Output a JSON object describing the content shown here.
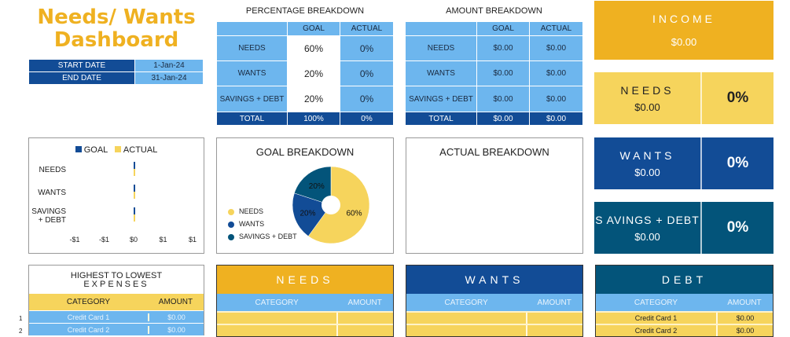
{
  "title": {
    "line1": "Needs/ Wants",
    "line2": "Dashboard"
  },
  "dates": {
    "start_label": "START DATE",
    "start": "1-Jan-24",
    "end_label": "END DATE",
    "end": "31-Jan-24"
  },
  "percentage": {
    "title": "PERCENTAGE BREAKDOWN",
    "headers": [
      "",
      "GOAL",
      "ACTUAL"
    ],
    "rows": [
      [
        "NEEDS",
        "60%",
        "0%"
      ],
      [
        "WANTS",
        "20%",
        "0%"
      ],
      [
        "SAVINGS + DEBT",
        "20%",
        "0%"
      ]
    ],
    "total": [
      "TOTAL",
      "100%",
      "0%"
    ]
  },
  "amount": {
    "title": "AMOUNT BREAKDOWN",
    "headers": [
      "",
      "GOAL",
      "ACTUAL"
    ],
    "rows": [
      [
        "NEEDS",
        "$0.00",
        "$0.00"
      ],
      [
        "WANTS",
        "$0.00",
        "$0.00"
      ],
      [
        "SAVINGS + DEBT",
        "$0.00",
        "$0.00"
      ]
    ],
    "total": [
      "TOTAL",
      "$0.00",
      "$0.00"
    ]
  },
  "cards": {
    "income": {
      "label": "INCOME",
      "value": "$0.00"
    },
    "needs": {
      "label": "NEEDS",
      "value": "$0.00",
      "pct": "0%"
    },
    "wants": {
      "label": "WANTS",
      "value": "$0.00",
      "pct": "0%"
    },
    "savings": {
      "label": "S AVINGS + DEBT",
      "value": "$0.00",
      "pct": "0%"
    }
  },
  "colors": {
    "gold": "#efb121",
    "yellow": "#f6d45c",
    "blue": "#124c96",
    "teal": "#03547a",
    "light": "#6db6ee"
  },
  "chart_data": [
    {
      "type": "bar",
      "orientation": "horizontal",
      "categories": [
        "NEEDS",
        "WANTS",
        "SAVINGS\n+ DEBT"
      ],
      "series": [
        {
          "name": "GOAL",
          "values": [
            0,
            0,
            0
          ],
          "color": "#124c96"
        },
        {
          "name": "ACTUAL",
          "values": [
            0,
            0,
            0
          ],
          "color": "#f6d45c"
        }
      ],
      "xticks": [
        "-$1",
        "-$1",
        "$0",
        "$1",
        "$1"
      ],
      "legend": "top"
    },
    {
      "type": "pie",
      "title": "GOAL BREAKDOWN",
      "categories": [
        "NEEDS",
        "WANTS",
        "SAVINGS + DEBT"
      ],
      "values": [
        60,
        20,
        20
      ],
      "labels": [
        "60%",
        "20%",
        "20%"
      ],
      "colors": [
        "#f6d45c",
        "#124c96",
        "#03547a"
      ],
      "legend": "left"
    },
    {
      "type": "pie",
      "title": "ACTUAL BREAKDOWN",
      "categories": [],
      "values": []
    }
  ],
  "lists": {
    "highest": {
      "title1": "HIGHEST TO LOWEST",
      "title2": "EXPENSES",
      "cat": "CATEGORY",
      "amt": "AMOUNT",
      "rows": [
        {
          "n": "1",
          "c": "Credit Card 1",
          "a": "$0.00"
        },
        {
          "n": "2",
          "c": "Credit Card 2",
          "a": "$0.00"
        }
      ]
    },
    "needs": {
      "title": "NEEDS",
      "cat": "CATEGORY",
      "amt": "AMOUNT"
    },
    "wants": {
      "title": "WANTS",
      "cat": "CATEGORY",
      "amt": "AMOUNT"
    },
    "debt": {
      "title": "DEBT",
      "cat": "CATEGORY",
      "amt": "AMOUNT",
      "rows": [
        {
          "c": "Credit Card 1",
          "a": "$0.00"
        },
        {
          "c": "Credit Card 2",
          "a": "$0.00"
        }
      ]
    }
  }
}
